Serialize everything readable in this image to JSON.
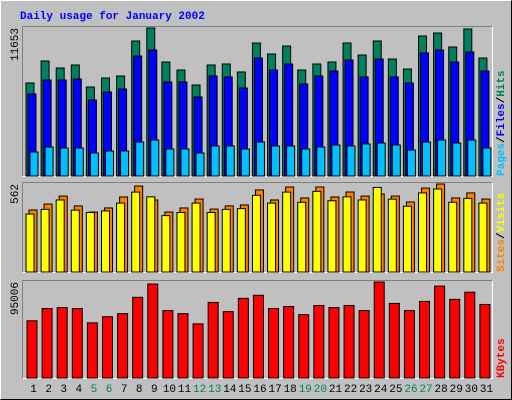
{
  "chart_data": [
    {
      "type": "bar",
      "title": "Daily usage for January 2002",
      "legend_separator": "/",
      "ylim": [
        0,
        11653
      ],
      "yticks": [
        11653
      ],
      "series": [
        {
          "name": "Pages",
          "color": "#00c0ff",
          "values": [
            1890,
            2283,
            2205,
            2205,
            1811,
            1969,
            1969,
            2677,
            2835,
            2126,
            2126,
            1811,
            2362,
            2362,
            2126,
            2677,
            2362,
            2362,
            2126,
            2283,
            2441,
            2362,
            2520,
            2598,
            2441,
            2047,
            2677,
            2835,
            2598,
            2835,
            2205
          ]
        },
        {
          "name": "Files",
          "color": "#0000ff",
          "values": [
            6457,
            7559,
            7559,
            7638,
            5984,
            6614,
            6850,
            9449,
            9921,
            7402,
            7402,
            6220,
            7874,
            7795,
            6929,
            9291,
            8346,
            8819,
            7244,
            7874,
            8268,
            9134,
            7795,
            9213,
            7795,
            7323,
            9685,
            9921,
            8976,
            9764,
            8268
          ]
        },
        {
          "name": "Hits",
          "color": "#00805c",
          "values": [
            7323,
            9055,
            8504,
            8740,
            7008,
            7717,
            7874,
            10630,
            11653,
            8976,
            8346,
            7165,
            8740,
            8819,
            8189,
            10472,
            9606,
            10236,
            8346,
            8819,
            8976,
            10472,
            9528,
            10630,
            9213,
            8425,
            11024,
            11260,
            10157,
            11575,
            9291
          ]
        }
      ]
    },
    {
      "type": "bar",
      "legend_separator": "/",
      "ylim": [
        0,
        562
      ],
      "yticks": [
        562
      ],
      "series": [
        {
          "name": "Sites",
          "color": "#ff8000",
          "values": [
            396,
            434,
            485,
            422,
            383,
            409,
            479,
            549,
            460,
            383,
            409,
            466,
            402,
            422,
            428,
            524,
            460,
            543,
            473,
            543,
            479,
            511,
            485,
            498,
            485,
            447,
            536,
            562,
            473,
            505,
            466
          ]
        },
        {
          "name": "Visits",
          "color": "#ffff00",
          "values": [
            370,
            400,
            460,
            395,
            380,
            390,
            440,
            510,
            480,
            360,
            380,
            440,
            380,
            400,
            405,
            490,
            440,
            510,
            445,
            515,
            455,
            480,
            460,
            540,
            465,
            420,
            505,
            530,
            445,
            470,
            440
          ]
        }
      ]
    },
    {
      "type": "bar",
      "ylim": [
        0,
        95006
      ],
      "yticks": [
        95006
      ],
      "categories": [
        1,
        2,
        3,
        4,
        5,
        6,
        7,
        8,
        9,
        10,
        11,
        12,
        13,
        14,
        15,
        16,
        17,
        18,
        19,
        20,
        21,
        22,
        23,
        24,
        25,
        26,
        27,
        28,
        29,
        30,
        31
      ],
      "category_colors": [
        "#000000",
        "#000000",
        "#000000",
        "#000000",
        "#00805c",
        "#00805c",
        "#000000",
        "#000000",
        "#000000",
        "#000000",
        "#000000",
        "#00805c",
        "#00805c",
        "#000000",
        "#000000",
        "#000000",
        "#000000",
        "#000000",
        "#00805c",
        "#00805c",
        "#000000",
        "#000000",
        "#000000",
        "#000000",
        "#000000",
        "#00805c",
        "#00805c",
        "#000000",
        "#000000",
        "#000000",
        "#000000"
      ],
      "series": [
        {
          "name": "KBytes",
          "color": "#ff0000",
          "values": [
            56600,
            68729,
            69740,
            68729,
            54578,
            60642,
            63674,
            79846,
            92986,
            66707,
            63674,
            53567,
            74793,
            65697,
            78835,
            81868,
            68729,
            70750,
            62664,
            71761,
            69740,
            71761,
            66707,
            95006,
            73782,
            66707,
            75804,
            90963,
            77825,
            84900,
            72772
          ]
        }
      ]
    }
  ]
}
